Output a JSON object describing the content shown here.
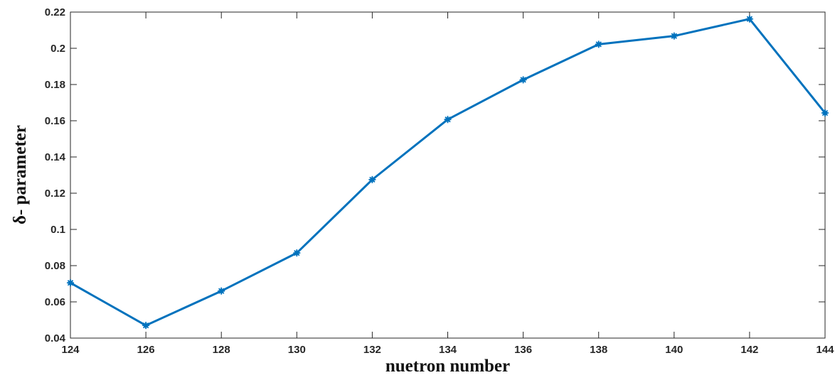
{
  "chart_data": {
    "type": "line",
    "title": "",
    "xlabel": "nuetron number",
    "ylabel": "δ- parameter",
    "xlim": [
      124,
      144
    ],
    "ylim": [
      0.04,
      0.22
    ],
    "xticks": [
      124,
      126,
      128,
      130,
      132,
      134,
      136,
      138,
      140,
      142,
      144
    ],
    "xtick_labels": [
      "124",
      "126",
      "128",
      "130",
      "132",
      "134",
      "136",
      "138",
      "140",
      "142",
      "144"
    ],
    "yticks": [
      0.04,
      0.06,
      0.08,
      0.1,
      0.12,
      0.14,
      0.16,
      0.18,
      0.2,
      0.22
    ],
    "ytick_labels": [
      "0.04",
      "0.06",
      "0.08",
      "0.1",
      "0.12",
      "0.14",
      "0.16",
      "0.18",
      "0.2",
      "0.22"
    ],
    "grid": false,
    "legend": "none",
    "series": [
      {
        "color": "#0072BD",
        "marker": "star",
        "x": [
          124,
          126,
          128,
          130,
          132,
          134,
          136,
          138,
          140,
          142,
          144
        ],
        "y": [
          0.0705,
          0.047,
          0.066,
          0.087,
          0.1275,
          0.1607,
          0.1826,
          0.2022,
          0.2068,
          0.2162,
          0.1643
        ]
      }
    ]
  }
}
